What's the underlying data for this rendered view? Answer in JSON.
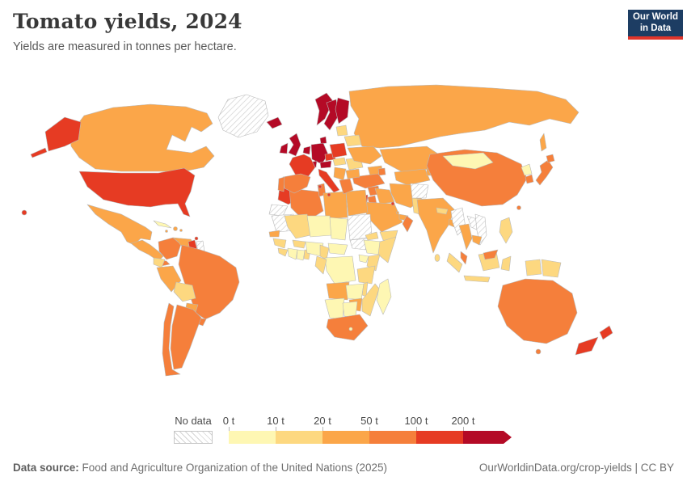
{
  "header": {
    "title": "Tomato yields, 2024",
    "subtitle": "Yields are measured in tonnes per hectare."
  },
  "logo": {
    "line1": "Our World",
    "line2": "in Data",
    "bg_color": "#1D3D63",
    "accent_color": "#E0352B"
  },
  "legend": {
    "no_data_label": "No data"
  },
  "footer": {
    "source_label": "Data source:",
    "source": "Food and Agriculture Organization of the United Nations (2025)",
    "rights": "OurWorldinData.org/crop-yields | CC BY"
  },
  "chart_data": {
    "type": "choropleth",
    "title": "Tomato yields, 2024",
    "unit": "tonnes per hectare",
    "year": 2024,
    "legend_ticks": [
      "0 t",
      "10 t",
      "20 t",
      "50 t",
      "100 t",
      "200 t"
    ],
    "ranges": [
      {
        "range": "0-10 t",
        "color": "#FEF7B3"
      },
      {
        "range": "10-20 t",
        "color": "#FDD880"
      },
      {
        "range": "20-50 t",
        "color": "#FBA649"
      },
      {
        "range": "50-100 t",
        "color": "#F57F3B"
      },
      {
        "range": "100-200 t",
        "color": "#E63B23"
      },
      {
        "range": "200+ t",
        "color": "#B40A26"
      }
    ],
    "no_data": {
      "label": "No data",
      "pattern": "diagonal-hatch"
    },
    "entities": {
      "United States": "100-200 t",
      "Canada": "20-50 t",
      "Greenland": "No data",
      "Mexico": "20-50 t",
      "Cuba": "0-10 t",
      "Dominican Republic": "20-50 t",
      "Jamaica": "20-50 t",
      "Puerto Rico": "20-50 t",
      "Guatemala": "20-50 t",
      "Costa Rica": "50-100 t",
      "Trinidad and Tobago": "100-200 t",
      "Colombia": "50-100 t",
      "Venezuela": "20-50 t",
      "Guyana": "100-200 t",
      "Suriname": "No data",
      "Ecuador": "10-20 t",
      "Peru": "20-50 t",
      "Brazil": "50-100 t",
      "Bolivia": "10-20 t",
      "Paraguay": "20-50 t",
      "Uruguay": "50-100 t",
      "Argentina": "50-100 t",
      "Chile": "50-100 t",
      "Iceland": "200+ t",
      "Ireland": "200+ t",
      "United Kingdom": "200+ t",
      "Norway": "200+ t",
      "Sweden": "200+ t",
      "Finland": "200+ t",
      "Denmark": "200+ t",
      "Netherlands": "200+ t",
      "Germany": "200+ t",
      "Austria": "200+ t",
      "Switzerland": "200+ t",
      "France": "100-200 t",
      "Poland": "100-200 t",
      "Czechia": "100-200 t",
      "Spain": "50-100 t",
      "Portugal": "50-100 t",
      "Italy": "100-200 t",
      "Hungary": "10-20 t",
      "Romania": "10-20 t",
      "Ukraine": "20-50 t",
      "Belarus": "10-20 t",
      "Lithuania": "10-20 t",
      "Serbia": "20-50 t",
      "Bulgaria": "20-50 t",
      "Greece": "50-100 t",
      "Russia": "20-50 t",
      "Kazakhstan": "20-50 t",
      "Uzbekistan": "20-50 t",
      "Kyrgyzstan": "20-50 t",
      "Georgia": "20-50 t",
      "Azerbaijan": "50-100 t",
      "Turkey": "50-100 t",
      "Syria": "50-100 t",
      "Israel": "100-200 t",
      "Jordan": "50-100 t",
      "Iraq": "20-50 t",
      "Iran": "20-50 t",
      "Afghanistan": "No data",
      "Pakistan": "10-20 t",
      "Saudi Arabia": "20-50 t",
      "Kuwait": "100-200 t",
      "Qatar": "20-50 t",
      "United Arab Emirates": "20-50 t",
      "Oman": "50-100 t",
      "Yemen": "10-20 t",
      "India": "20-50 t",
      "Nepal": "10-20 t",
      "Bangladesh": "20-50 t",
      "Sri Lanka": "10-20 t",
      "China": "50-100 t",
      "Mongolia": "0-10 t",
      "North Korea": "0-10 t",
      "South Korea": "50-100 t",
      "Japan": "50-100 t",
      "Taiwan": "50-100 t",
      "Myanmar": "No data",
      "Laos": "No data",
      "Vietnam": "No data",
      "Cambodia": "20-50 t",
      "Thailand": "20-50 t",
      "Malaysia": "50-100 t",
      "Indonesia": "10-20 t",
      "Philippines": "10-20 t",
      "Papua New Guinea": "10-20 t",
      "Australia": "50-100 t",
      "New Zealand": "100-200 t",
      "Morocco": "100-200 t",
      "Algeria": "50-100 t",
      "Tunisia": "50-100 t",
      "Libya": "20-50 t",
      "Egypt": "20-50 t",
      "Western Sahara": "No data",
      "Mauritania": "No data",
      "Senegal": "20-50 t",
      "Guinea": "10-20 t",
      "Sierra Leone": "10-20 t",
      "Cote d'Ivoire": "0-10 t",
      "Ghana": "0-10 t",
      "Benin": "10-20 t",
      "Burkina Faso": "10-20 t",
      "Mali": "10-20 t",
      "Niger": "0-10 t",
      "Chad": "0-10 t",
      "Nigeria": "0-10 t",
      "Cameroon": "10-20 t",
      "Central African Republic": "0-10 t",
      "Sudan": "No data",
      "South Sudan": "No data",
      "Eritrea": "10-20 t",
      "Ethiopia": "0-10 t",
      "Somalia": "10-20 t",
      "Uganda": "0-10 t",
      "Kenya": "10-20 t",
      "Democratic Republic of Congo": "0-10 t",
      "Congo": "10-20 t",
      "Tanzania": "10-20 t",
      "Angola": "20-50 t",
      "Zambia": "0-10 t",
      "Malawi": "10-20 t",
      "Mozambique": "10-20 t",
      "Zimbabwe": "20-50 t",
      "Namibia": "0-10 t",
      "Botswana": "0-10 t",
      "South Africa": "50-100 t",
      "Lesotho": "0-10 t",
      "Madagascar": "0-10 t"
    }
  }
}
